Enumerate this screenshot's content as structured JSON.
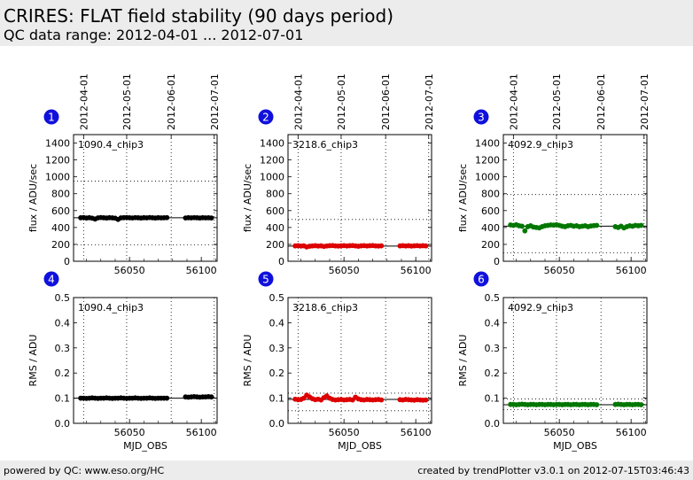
{
  "header": {
    "title": "CRIRES: FLAT field stability (90 days period)",
    "subtitle": "QC data range: 2012-04-01 ... 2012-07-01"
  },
  "footer": {
    "left": "powered by QC: www.eso.org/HC",
    "right": "created by trendPlotter v3.0.1 on 2012-07-15T03:46:43"
  },
  "chart_data": {
    "type": "scatter",
    "x_range": [
      56011,
      56111
    ],
    "date_ticks": [
      {
        "mjd": 56018,
        "label": "2012-04-01"
      },
      {
        "mjd": 56048,
        "label": "2012-05-01"
      },
      {
        "mjd": 56079,
        "label": "2012-06-01"
      },
      {
        "mjd": 56109,
        "label": "2012-07-01"
      }
    ],
    "x_ticks": [
      56050,
      56100
    ],
    "xlabel": "MJD_OBS",
    "flux_ylim": [
      0,
      1500
    ],
    "flux_yticks": [
      0,
      200,
      400,
      600,
      800,
      1000,
      1200,
      1400
    ],
    "rms_ylim": [
      0,
      0.5
    ],
    "rms_yticks": [
      0.0,
      0.1,
      0.2,
      0.3,
      0.4,
      0.5
    ],
    "flux_ylabel": "flux / ADU/sec",
    "rms_ylabel": "RMS / ADU",
    "panels": [
      {
        "number": "1",
        "kind": "flux",
        "label": "1090.4_chip3",
        "color": "#000000",
        "ref_line": 515,
        "limits": [
          195,
          950
        ],
        "points": [
          [
            56016,
            515
          ],
          [
            56018,
            518
          ],
          [
            56020,
            512
          ],
          [
            56022,
            516
          ],
          [
            56024,
            510
          ],
          [
            56026,
            500
          ],
          [
            56028,
            514
          ],
          [
            56030,
            518
          ],
          [
            56032,
            515
          ],
          [
            56034,
            512
          ],
          [
            56036,
            516
          ],
          [
            56038,
            514
          ],
          [
            56040,
            510
          ],
          [
            56042,
            496
          ],
          [
            56044,
            514
          ],
          [
            56046,
            516
          ],
          [
            56048,
            518
          ],
          [
            56050,
            515
          ],
          [
            56052,
            513
          ],
          [
            56054,
            517
          ],
          [
            56056,
            515
          ],
          [
            56058,
            512
          ],
          [
            56060,
            516
          ],
          [
            56062,
            514
          ],
          [
            56064,
            518
          ],
          [
            56066,
            515
          ],
          [
            56068,
            512
          ],
          [
            56070,
            516
          ],
          [
            56072,
            514
          ],
          [
            56074,
            515
          ],
          [
            56076,
            517
          ],
          [
            56089,
            513
          ],
          [
            56091,
            516
          ],
          [
            56093,
            514
          ],
          [
            56095,
            517
          ],
          [
            56097,
            515
          ],
          [
            56099,
            512
          ],
          [
            56101,
            516
          ],
          [
            56103,
            514
          ],
          [
            56105,
            515
          ],
          [
            56107,
            513
          ]
        ]
      },
      {
        "number": "2",
        "kind": "flux",
        "label": "3218.6_chip3",
        "color": "#dd0000",
        "ref_line": 180,
        "limits": [
          0,
          495
        ],
        "points": [
          [
            56016,
            182
          ],
          [
            56018,
            185
          ],
          [
            56020,
            180
          ],
          [
            56022,
            183
          ],
          [
            56024,
            170
          ],
          [
            56026,
            178
          ],
          [
            56028,
            182
          ],
          [
            56030,
            184
          ],
          [
            56032,
            180
          ],
          [
            56034,
            183
          ],
          [
            56036,
            176
          ],
          [
            56038,
            181
          ],
          [
            56040,
            184
          ],
          [
            56042,
            186
          ],
          [
            56044,
            182
          ],
          [
            56046,
            180
          ],
          [
            56048,
            183
          ],
          [
            56050,
            185
          ],
          [
            56052,
            181
          ],
          [
            56054,
            184
          ],
          [
            56056,
            186
          ],
          [
            56058,
            182
          ],
          [
            56060,
            178
          ],
          [
            56062,
            183
          ],
          [
            56064,
            185
          ],
          [
            56066,
            181
          ],
          [
            56068,
            184
          ],
          [
            56070,
            186
          ],
          [
            56072,
            182
          ],
          [
            56074,
            180
          ],
          [
            56076,
            183
          ],
          [
            56089,
            182
          ],
          [
            56091,
            185
          ],
          [
            56093,
            181
          ],
          [
            56095,
            184
          ],
          [
            56097,
            180
          ],
          [
            56099,
            183
          ],
          [
            56101,
            185
          ],
          [
            56103,
            181
          ],
          [
            56105,
            184
          ],
          [
            56107,
            182
          ]
        ]
      },
      {
        "number": "3",
        "kind": "flux",
        "label": "4092.9_chip3",
        "color": "#007700",
        "ref_line": 415,
        "limits": [
          100,
          790
        ],
        "points": [
          [
            56016,
            430
          ],
          [
            56018,
            425
          ],
          [
            56020,
            432
          ],
          [
            56022,
            420
          ],
          [
            56024,
            415
          ],
          [
            56026,
            360
          ],
          [
            56028,
            410
          ],
          [
            56030,
            420
          ],
          [
            56032,
            405
          ],
          [
            56034,
            400
          ],
          [
            56036,
            395
          ],
          [
            56038,
            410
          ],
          [
            56040,
            420
          ],
          [
            56042,
            425
          ],
          [
            56044,
            430
          ],
          [
            56046,
            428
          ],
          [
            56048,
            432
          ],
          [
            56050,
            425
          ],
          [
            56052,
            415
          ],
          [
            56054,
            410
          ],
          [
            56056,
            420
          ],
          [
            56058,
            425
          ],
          [
            56060,
            415
          ],
          [
            56062,
            420
          ],
          [
            56064,
            410
          ],
          [
            56066,
            415
          ],
          [
            56068,
            420
          ],
          [
            56070,
            410
          ],
          [
            56072,
            418
          ],
          [
            56074,
            422
          ],
          [
            56076,
            425
          ],
          [
            56089,
            410
          ],
          [
            56091,
            400
          ],
          [
            56093,
            415
          ],
          [
            56095,
            395
          ],
          [
            56097,
            410
          ],
          [
            56099,
            420
          ],
          [
            56101,
            415
          ],
          [
            56103,
            425
          ],
          [
            56105,
            420
          ],
          [
            56107,
            425
          ]
        ]
      },
      {
        "number": "4",
        "kind": "rms",
        "label": "1090.4_chip3",
        "color": "#000000",
        "ref_line": 0.1,
        "limits": [],
        "points": [
          [
            56016,
            0.1
          ],
          [
            56018,
            0.1
          ],
          [
            56020,
            0.099
          ],
          [
            56022,
            0.1
          ],
          [
            56024,
            0.101
          ],
          [
            56026,
            0.1
          ],
          [
            56028,
            0.099
          ],
          [
            56030,
            0.1
          ],
          [
            56032,
            0.1
          ],
          [
            56034,
            0.101
          ],
          [
            56036,
            0.1
          ],
          [
            56038,
            0.099
          ],
          [
            56040,
            0.1
          ],
          [
            56042,
            0.1
          ],
          [
            56044,
            0.101
          ],
          [
            56046,
            0.1
          ],
          [
            56048,
            0.099
          ],
          [
            56050,
            0.1
          ],
          [
            56052,
            0.1
          ],
          [
            56054,
            0.101
          ],
          [
            56056,
            0.1
          ],
          [
            56058,
            0.099
          ],
          [
            56060,
            0.1
          ],
          [
            56062,
            0.1
          ],
          [
            56064,
            0.101
          ],
          [
            56066,
            0.1
          ],
          [
            56068,
            0.099
          ],
          [
            56070,
            0.1
          ],
          [
            56072,
            0.1
          ],
          [
            56074,
            0.1
          ],
          [
            56076,
            0.1
          ],
          [
            56089,
            0.105
          ],
          [
            56091,
            0.104
          ],
          [
            56093,
            0.105
          ],
          [
            56095,
            0.106
          ],
          [
            56097,
            0.105
          ],
          [
            56099,
            0.104
          ],
          [
            56101,
            0.105
          ],
          [
            56103,
            0.105
          ],
          [
            56105,
            0.106
          ],
          [
            56107,
            0.105
          ]
        ]
      },
      {
        "number": "5",
        "kind": "rms",
        "label": "3218.6_chip3",
        "color": "#dd0000",
        "ref_line": 0.095,
        "limits": [
          0.05,
          0.12
        ],
        "points": [
          [
            56016,
            0.096
          ],
          [
            56018,
            0.094
          ],
          [
            56020,
            0.095
          ],
          [
            56022,
            0.1
          ],
          [
            56024,
            0.112
          ],
          [
            56026,
            0.105
          ],
          [
            56028,
            0.098
          ],
          [
            56030,
            0.094
          ],
          [
            56032,
            0.096
          ],
          [
            56034,
            0.093
          ],
          [
            56036,
            0.102
          ],
          [
            56038,
            0.109
          ],
          [
            56040,
            0.1
          ],
          [
            56042,
            0.095
          ],
          [
            56044,
            0.093
          ],
          [
            56046,
            0.094
          ],
          [
            56048,
            0.095
          ],
          [
            56050,
            0.093
          ],
          [
            56052,
            0.094
          ],
          [
            56054,
            0.095
          ],
          [
            56056,
            0.093
          ],
          [
            56058,
            0.104
          ],
          [
            56060,
            0.097
          ],
          [
            56062,
            0.094
          ],
          [
            56064,
            0.093
          ],
          [
            56066,
            0.095
          ],
          [
            56068,
            0.094
          ],
          [
            56070,
            0.093
          ],
          [
            56072,
            0.094
          ],
          [
            56074,
            0.095
          ],
          [
            56076,
            0.093
          ],
          [
            56089,
            0.094
          ],
          [
            56091,
            0.093
          ],
          [
            56093,
            0.095
          ],
          [
            56095,
            0.094
          ],
          [
            56097,
            0.093
          ],
          [
            56099,
            0.092
          ],
          [
            56101,
            0.094
          ],
          [
            56103,
            0.093
          ],
          [
            56105,
            0.092
          ],
          [
            56107,
            0.093
          ]
        ]
      },
      {
        "number": "6",
        "kind": "rms",
        "label": "4092.9_chip3",
        "color": "#007700",
        "ref_line": 0.074,
        "limits": [
          0.055,
          0.097
        ],
        "points": [
          [
            56016,
            0.075
          ],
          [
            56018,
            0.075
          ],
          [
            56020,
            0.074
          ],
          [
            56022,
            0.075
          ],
          [
            56024,
            0.076
          ],
          [
            56026,
            0.075
          ],
          [
            56028,
            0.074
          ],
          [
            56030,
            0.075
          ],
          [
            56032,
            0.075
          ],
          [
            56034,
            0.074
          ],
          [
            56036,
            0.075
          ],
          [
            56038,
            0.075
          ],
          [
            56040,
            0.074
          ],
          [
            56042,
            0.075
          ],
          [
            56044,
            0.075
          ],
          [
            56046,
            0.074
          ],
          [
            56048,
            0.075
          ],
          [
            56050,
            0.075
          ],
          [
            56052,
            0.074
          ],
          [
            56054,
            0.075
          ],
          [
            56056,
            0.075
          ],
          [
            56058,
            0.074
          ],
          [
            56060,
            0.075
          ],
          [
            56062,
            0.075
          ],
          [
            56064,
            0.074
          ],
          [
            56066,
            0.075
          ],
          [
            56068,
            0.075
          ],
          [
            56070,
            0.074
          ],
          [
            56072,
            0.075
          ],
          [
            56074,
            0.075
          ],
          [
            56076,
            0.074
          ],
          [
            56089,
            0.075
          ],
          [
            56091,
            0.076
          ],
          [
            56093,
            0.075
          ],
          [
            56095,
            0.074
          ],
          [
            56097,
            0.075
          ],
          [
            56099,
            0.075
          ],
          [
            56101,
            0.074
          ],
          [
            56103,
            0.075
          ],
          [
            56105,
            0.075
          ],
          [
            56107,
            0.074
          ]
        ]
      }
    ]
  }
}
